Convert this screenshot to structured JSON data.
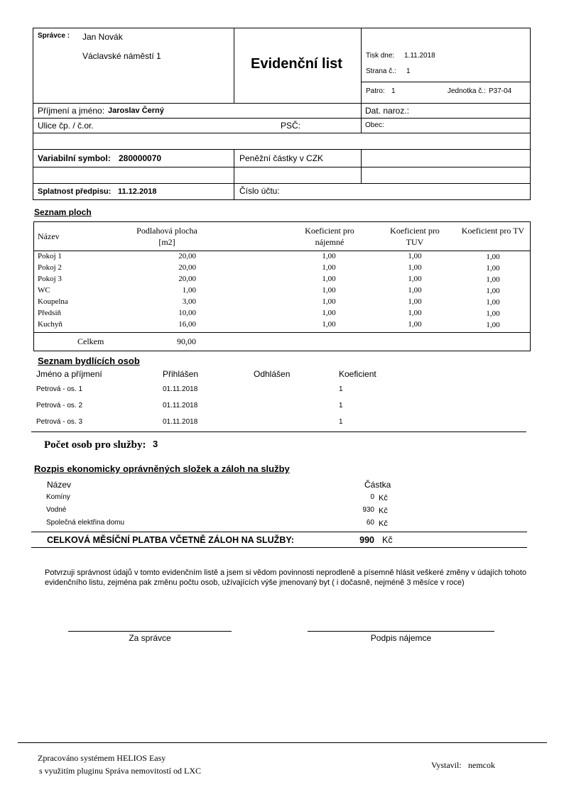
{
  "header": {
    "spravce_label": "Správce :",
    "spravce_name": "Jan Novák",
    "spravce_address": "Václavské náměstí 1",
    "title": "Evidenční list",
    "tisk_label": "Tisk dne:",
    "tisk_value": "1.11.2018",
    "strana_label": "Strana č.:",
    "strana_value": "1",
    "patro_label": "Patro:",
    "patro_value": "1",
    "jednotka_label": "Jednotka č.:",
    "jednotka_value": "P37-04"
  },
  "tenant": {
    "name_label": "Příjmení a jméno:",
    "name_value": "Jaroslav Černý",
    "dob_label": "Dat. naroz.:",
    "street_label": "Ulice čp. / č.or.",
    "psc_label": "PSČ:",
    "obec_label": "Obec:",
    "vs_label": "Variabilní symbol:",
    "vs_value": "280000070",
    "currency_label": "Peněžní částky v CZK",
    "due_label": "Splatnost předpisu:",
    "due_value": "11.12.2018",
    "account_label": "Číslo účtu:"
  },
  "areas": {
    "title": "Seznam ploch",
    "headers": [
      "Název",
      "Podlahová plocha [m2]",
      "Koeficient pro nájemné",
      "Koeficient pro TUV",
      "Koeficient pro TV"
    ],
    "rows": [
      [
        "Pokoj 1",
        "20,00",
        "1,00",
        "1,00",
        "1,00"
      ],
      [
        "Pokoj 2",
        "20,00",
        "1,00",
        "1,00",
        "1,00"
      ],
      [
        "Pokoj 3",
        "20,00",
        "1,00",
        "1,00",
        "1,00"
      ],
      [
        "WC",
        "1,00",
        "1,00",
        "1,00",
        "1,00"
      ],
      [
        "Koupelna",
        "3,00",
        "1,00",
        "1,00",
        "1,00"
      ],
      [
        "Předsiň",
        "10,00",
        "1,00",
        "1,00",
        "1,00"
      ],
      [
        "Kuchyň",
        "16,00",
        "1,00",
        "1,00",
        "1,00"
      ]
    ],
    "total_label": "Celkem",
    "total_value": "90,00"
  },
  "persons": {
    "title": "Seznam bydlících osob",
    "headers": [
      "Jméno a příjmení",
      "Přihlášen",
      "Odhlášen",
      "Koeficient"
    ],
    "rows": [
      [
        "Petrová - os. 1",
        "01.11.2018",
        "",
        "1"
      ],
      [
        "Petrová - os. 2",
        "01.11.2018",
        "",
        "1"
      ],
      [
        "Petrová - os. 3",
        "01.11.2018",
        "",
        "1"
      ]
    ],
    "count_label": "Počet osob pro služby:",
    "count_value": "3"
  },
  "services": {
    "title": "Rozpis ekonomicky oprávněných složek a záloh na služby",
    "headers": [
      "Název",
      "Částka"
    ],
    "rows": [
      [
        "Komíny",
        "0",
        "Kč"
      ],
      [
        "Vodné",
        "930",
        "Kč"
      ],
      [
        "Společná elektřina domu",
        "60",
        "Kč"
      ]
    ],
    "total_label": "CELKOVÁ MĚSÍČNÍ PLATBA VČETNĚ ZÁLOH NA SLUŽBY:",
    "total_value": "990",
    "total_currency": "Kč"
  },
  "declaration": "Potvrzuji správnost údajů v tomto evidenčním listě a jsem si vědom povinnosti neprodleně a písemně hlásit veškeré změny v údajích tohoto evidenčního listu, zejména pak změnu počtu osob, užívajících výše jmenovaný byt ( i dočasně, nejméně 3 měsíce v roce)",
  "signatures": {
    "manager": "Za správce",
    "tenant": "Podpis nájemce"
  },
  "footer": {
    "line1": "Zpracováno systémem HELIOS Easy",
    "line2": "s využitím pluginu Správa nemovitostí od LXC",
    "issuer_label": "Vystavil:",
    "issuer_value": "nemcok"
  }
}
